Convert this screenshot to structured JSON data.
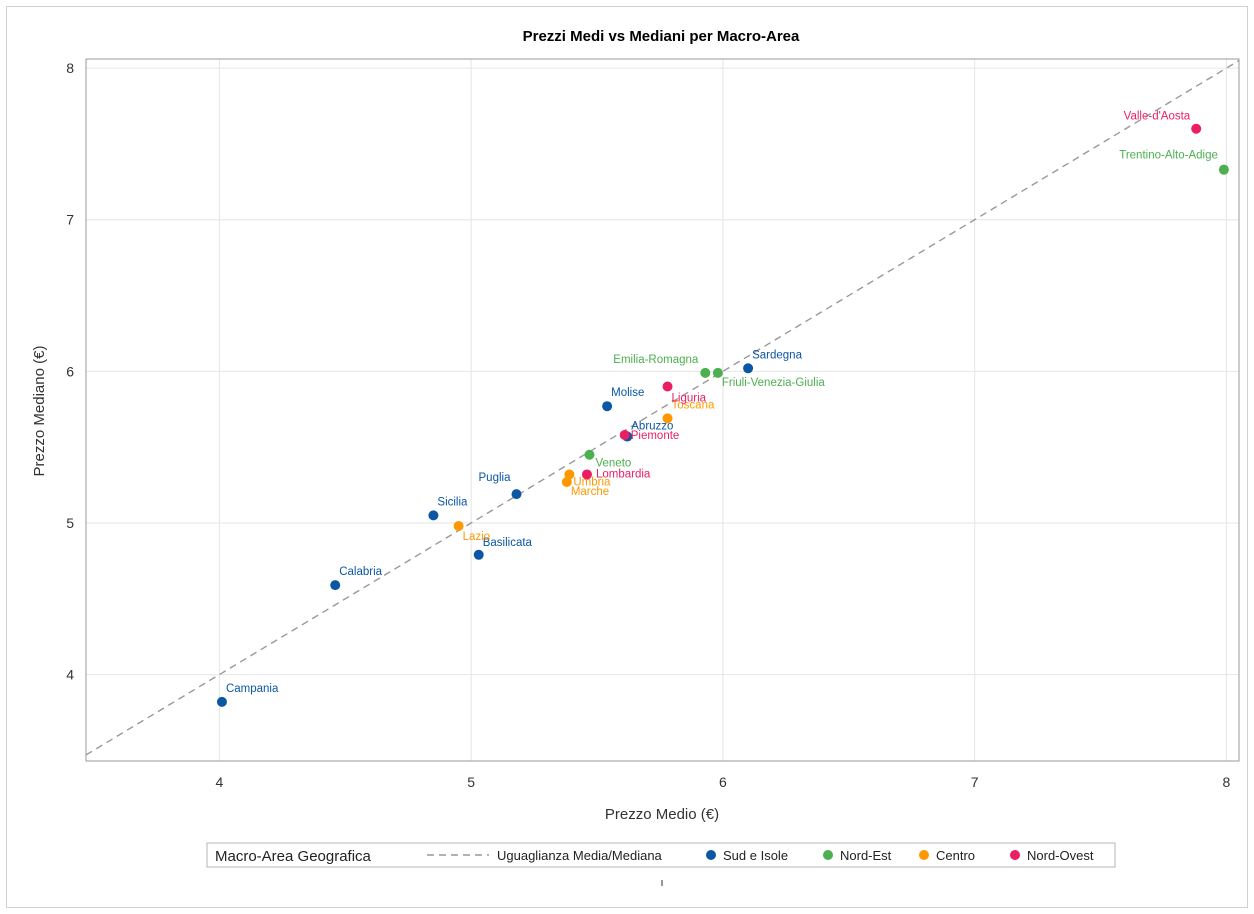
{
  "chart_data": {
    "type": "scatter",
    "title": "Prezzi Medi vs Mediani per Macro-Area",
    "xlabel": "Prezzo Medio (€)",
    "ylabel": "Prezzo Mediano (€)",
    "xlim": [
      3.47,
      8.05
    ],
    "ylim": [
      3.43,
      8.06
    ],
    "xticks": [
      4,
      5,
      6,
      7,
      8
    ],
    "yticks": [
      4,
      5,
      6,
      7,
      8
    ],
    "grid": true,
    "legend": {
      "title": "Macro-Area Geografica",
      "placement": "bottom",
      "line_label": "Uguaglianza Media/Mediana",
      "groups": [
        {
          "name": "Sud e Isole",
          "color": "#0b57a4"
        },
        {
          "name": "Nord-Est",
          "color": "#4caf50"
        },
        {
          "name": "Centro",
          "color": "#ff9800"
        },
        {
          "name": "Nord-Ovest",
          "color": "#e91e63"
        }
      ]
    },
    "series": [
      {
        "name": "Sud e Isole",
        "color": "#0b57a4",
        "points": [
          {
            "label": "Campania",
            "x": 4.01,
            "y": 3.82
          },
          {
            "label": "Calabria",
            "x": 4.46,
            "y": 4.59
          },
          {
            "label": "Sicilia",
            "x": 4.85,
            "y": 5.05
          },
          {
            "label": "Basilicata",
            "x": 5.03,
            "y": 4.79
          },
          {
            "label": "Puglia",
            "x": 5.18,
            "y": 5.19
          },
          {
            "label": "Molise",
            "x": 5.54,
            "y": 5.77
          },
          {
            "label": "Abruzzo",
            "x": 5.62,
            "y": 5.57
          },
          {
            "label": "Sardegna",
            "x": 6.1,
            "y": 6.02
          }
        ]
      },
      {
        "name": "Nord-Est",
        "color": "#4caf50",
        "points": [
          {
            "label": "Veneto",
            "x": 5.47,
            "y": 5.45
          },
          {
            "label": "Emilia-Romagna",
            "x": 5.93,
            "y": 5.99
          },
          {
            "label": "Friuli-Venezia-Giulia",
            "x": 5.98,
            "y": 5.99
          },
          {
            "label": "Trentino-Alto-Adige",
            "x": 7.99,
            "y": 7.33
          }
        ]
      },
      {
        "name": "Centro",
        "color": "#ff9800",
        "points": [
          {
            "label": "Lazio",
            "x": 4.95,
            "y": 4.98
          },
          {
            "label": "Umbria",
            "x": 5.39,
            "y": 5.32
          },
          {
            "label": "Marche",
            "x": 5.38,
            "y": 5.27
          },
          {
            "label": "Toscana",
            "x": 5.78,
            "y": 5.69
          }
        ]
      },
      {
        "name": "Nord-Ovest",
        "color": "#e91e63",
        "points": [
          {
            "label": "Lombardia",
            "x": 5.46,
            "y": 5.32
          },
          {
            "label": "Piemonte",
            "x": 5.61,
            "y": 5.58
          },
          {
            "label": "Liguria",
            "x": 5.78,
            "y": 5.9
          },
          {
            "label": "Valle-d'Aosta",
            "x": 7.88,
            "y": 7.6
          }
        ]
      }
    ]
  }
}
